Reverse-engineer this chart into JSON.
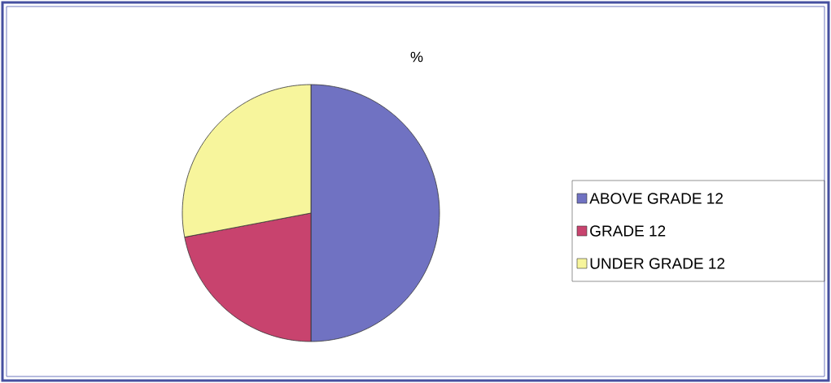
{
  "chart_data": {
    "type": "pie",
    "title": "%",
    "categories": [
      "ABOVE GRADE 12",
      "GRADE 12",
      "UNDER GRADE 12"
    ],
    "values": [
      50,
      22,
      28
    ],
    "colors": [
      "#7072c2",
      "#c8436e",
      "#f7f59c"
    ],
    "legend": "right"
  }
}
